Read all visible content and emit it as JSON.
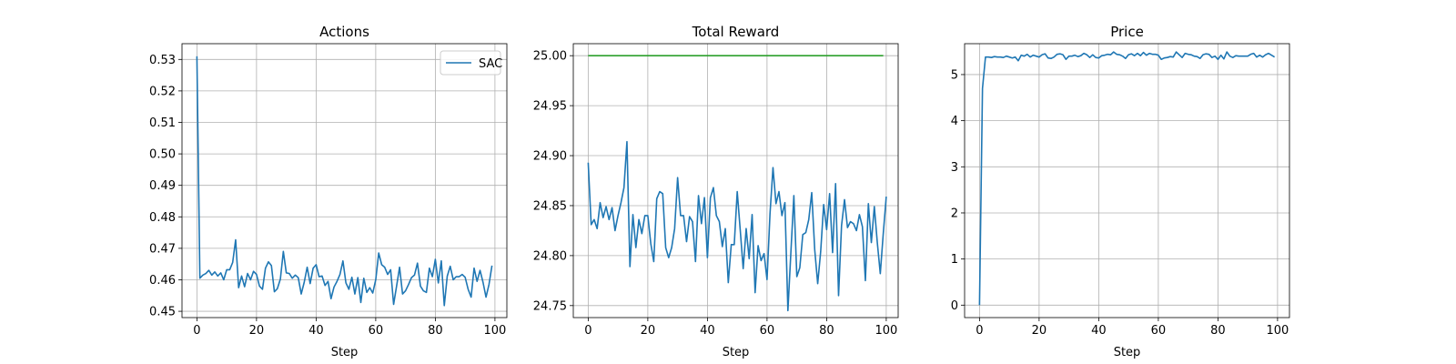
{
  "colors": {
    "series": "#1f77b4",
    "reference": "#2ca02c",
    "grid": "#b0b0b0",
    "axes": "#000000"
  },
  "chart_data": [
    {
      "type": "line",
      "title": "Actions",
      "xlabel": "Step",
      "ylabel": "",
      "xlim": [
        -5,
        104
      ],
      "ylim": [
        0.448,
        0.535
      ],
      "xticks": [
        0,
        20,
        40,
        60,
        80,
        100
      ],
      "yticks": [
        0.45,
        0.46,
        0.47,
        0.48,
        0.49,
        0.5,
        0.51,
        0.52,
        0.53
      ],
      "ytick_decimals": 2,
      "grid": true,
      "legend": {
        "position": "upper right",
        "entries": [
          "SAC"
        ]
      },
      "series": [
        {
          "name": "SAC",
          "color": "#1f77b4",
          "x_start": 0,
          "values": [
            0.531,
            0.4605,
            0.4615,
            0.462,
            0.463,
            0.4615,
            0.4625,
            0.4612,
            0.4622,
            0.46,
            0.4632,
            0.4632,
            0.4655,
            0.4727,
            0.4575,
            0.4612,
            0.4578,
            0.462,
            0.46,
            0.4627,
            0.4617,
            0.458,
            0.457,
            0.4637,
            0.4657,
            0.4645,
            0.4562,
            0.4572,
            0.4602,
            0.469,
            0.4622,
            0.462,
            0.4605,
            0.4615,
            0.4607,
            0.4555,
            0.4592,
            0.464,
            0.4588,
            0.4637,
            0.4648,
            0.461,
            0.4612,
            0.4582,
            0.4595,
            0.454,
            0.4577,
            0.4595,
            0.4617,
            0.466,
            0.459,
            0.457,
            0.4608,
            0.4555,
            0.4607,
            0.4528,
            0.4605,
            0.456,
            0.4575,
            0.4558,
            0.46,
            0.4685,
            0.4648,
            0.464,
            0.4617,
            0.4632,
            0.4522,
            0.458,
            0.464,
            0.4555,
            0.4565,
            0.4585,
            0.4607,
            0.4615,
            0.4653,
            0.458,
            0.4565,
            0.456,
            0.4637,
            0.461,
            0.4665,
            0.459,
            0.466,
            0.4518,
            0.4612,
            0.4643,
            0.46,
            0.461,
            0.461,
            0.4617,
            0.4608,
            0.457,
            0.4545,
            0.4637,
            0.4595,
            0.463,
            0.4592,
            0.4545,
            0.4585,
            0.4645
          ]
        }
      ]
    },
    {
      "type": "line",
      "title": "Total Reward",
      "xlabel": "Step",
      "ylabel": "",
      "xlim": [
        -5,
        104
      ],
      "ylim": [
        24.738,
        25.012
      ],
      "xticks": [
        0,
        20,
        40,
        60,
        80,
        100
      ],
      "yticks": [
        24.75,
        24.8,
        24.85,
        24.9,
        24.95,
        25.0
      ],
      "ytick_decimals": 2,
      "grid": true,
      "series": [
        {
          "color": "#1f77b4",
          "x_start": 0,
          "values": [
            24.893,
            24.831,
            24.836,
            24.827,
            24.853,
            24.838,
            24.849,
            24.836,
            24.848,
            24.825,
            24.84,
            24.853,
            24.868,
            24.914,
            24.789,
            24.841,
            24.808,
            24.836,
            24.822,
            24.84,
            24.84,
            24.812,
            24.794,
            24.857,
            24.864,
            24.862,
            24.808,
            24.798,
            24.808,
            24.827,
            24.878,
            24.84,
            24.84,
            24.814,
            24.839,
            24.834,
            24.794,
            24.86,
            24.832,
            24.858,
            24.798,
            24.858,
            24.868,
            24.84,
            24.834,
            24.809,
            24.827,
            24.773,
            24.811,
            24.811,
            24.864,
            24.826,
            24.787,
            24.827,
            24.797,
            24.841,
            24.763,
            24.81,
            24.795,
            24.802,
            24.776,
            24.842,
            24.888,
            24.852,
            24.864,
            24.84,
            24.853,
            24.745,
            24.803,
            24.86,
            24.779,
            24.788,
            24.821,
            24.823,
            24.836,
            24.863,
            24.806,
            24.772,
            24.804,
            24.851,
            24.826,
            24.862,
            24.803,
            24.872,
            24.76,
            24.83,
            24.856,
            24.828,
            24.834,
            24.832,
            24.825,
            24.841,
            24.829,
            24.775,
            24.852,
            24.813,
            24.849,
            24.813,
            24.782,
            24.822,
            24.859
          ]
        },
        {
          "color": "#2ca02c",
          "x": [
            0,
            99
          ],
          "values": [
            25.0,
            25.0
          ]
        }
      ]
    },
    {
      "type": "line",
      "title": "Price",
      "xlabel": "Step",
      "ylabel": "",
      "xlim": [
        -5,
        104
      ],
      "ylim": [
        -0.27,
        5.67
      ],
      "xticks": [
        0,
        20,
        40,
        60,
        80,
        100
      ],
      "yticks": [
        0,
        1,
        2,
        3,
        4,
        5
      ],
      "ytick_decimals": 0,
      "grid": true,
      "series": [
        {
          "color": "#1f77b4",
          "x_start": 0,
          "values": [
            0.0,
            4.7,
            5.38,
            5.38,
            5.37,
            5.39,
            5.38,
            5.38,
            5.37,
            5.4,
            5.38,
            5.36,
            5.38,
            5.3,
            5.42,
            5.4,
            5.44,
            5.38,
            5.42,
            5.4,
            5.38,
            5.43,
            5.45,
            5.36,
            5.35,
            5.38,
            5.44,
            5.45,
            5.43,
            5.33,
            5.4,
            5.4,
            5.42,
            5.39,
            5.41,
            5.46,
            5.43,
            5.37,
            5.43,
            5.37,
            5.36,
            5.41,
            5.42,
            5.44,
            5.43,
            5.49,
            5.44,
            5.43,
            5.4,
            5.35,
            5.43,
            5.45,
            5.41,
            5.46,
            5.41,
            5.48,
            5.42,
            5.46,
            5.44,
            5.44,
            5.42,
            5.33,
            5.36,
            5.37,
            5.39,
            5.38,
            5.49,
            5.43,
            5.37,
            5.46,
            5.44,
            5.43,
            5.4,
            5.39,
            5.35,
            5.43,
            5.45,
            5.44,
            5.37,
            5.4,
            5.33,
            5.42,
            5.34,
            5.49,
            5.4,
            5.37,
            5.41,
            5.4,
            5.4,
            5.4,
            5.4,
            5.44,
            5.46,
            5.38,
            5.42,
            5.38,
            5.43,
            5.46,
            5.42,
            5.38
          ]
        }
      ]
    }
  ]
}
